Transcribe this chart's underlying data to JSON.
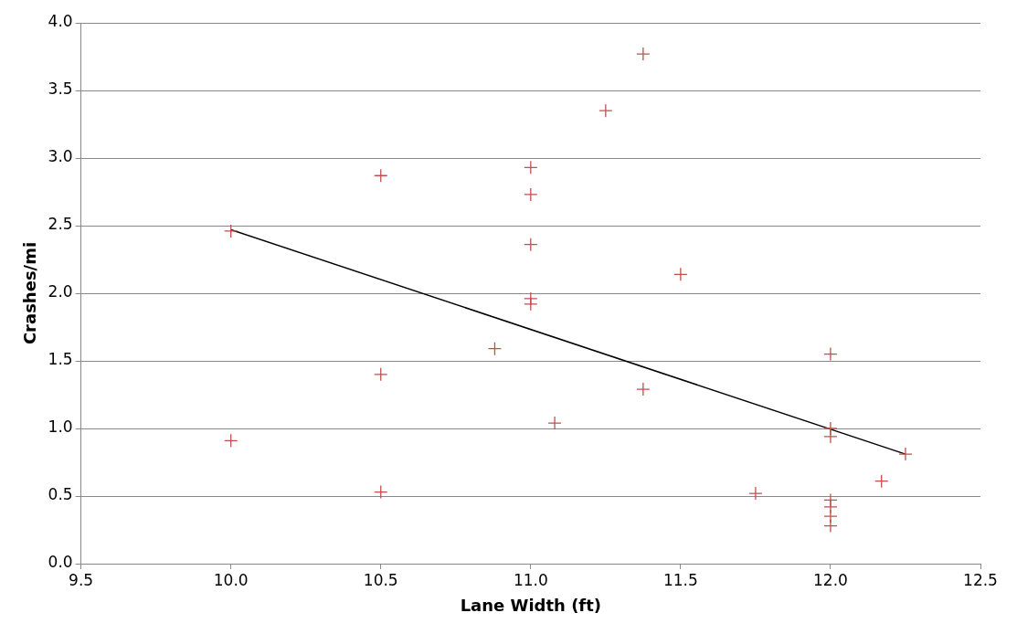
{
  "chart_data": {
    "type": "scatter",
    "xlabel": "Lane Width (ft)",
    "ylabel": "Crashes/mi",
    "xlim": [
      9.5,
      12.5
    ],
    "xticks": [
      {
        "value": 9.5,
        "label": "9.5"
      },
      {
        "value": 10,
        "label": "10.0"
      },
      {
        "value": 10.5,
        "label": "10.5"
      },
      {
        "value": 11,
        "label": "11.0"
      },
      {
        "value": 11.5,
        "label": "11.5"
      },
      {
        "value": 12,
        "label": "12.0"
      },
      {
        "value": 12.5,
        "label": "12.5"
      }
    ],
    "ylim": [
      0,
      4
    ],
    "yticks": [
      {
        "value": 0,
        "label": "0.0"
      },
      {
        "value": 0.5,
        "label": "0.5"
      },
      {
        "value": 1,
        "label": "1.0"
      },
      {
        "value": 1.5,
        "label": "1.5"
      },
      {
        "value": 2,
        "label": "2.0"
      },
      {
        "value": 2.5,
        "label": "2.5"
      },
      {
        "value": 3,
        "label": "3.0"
      },
      {
        "value": 3.5,
        "label": "3.5"
      },
      {
        "value": 4,
        "label": "4.0"
      }
    ],
    "grid": "y",
    "legend": false,
    "marker": "cross",
    "series": [
      {
        "color": "#c0504d",
        "x": [
          10,
          10,
          10.5,
          10.5,
          10.5,
          10.88,
          11,
          11,
          11,
          11,
          11,
          11.08,
          11.25,
          11.375,
          11.375,
          11.5,
          11.75,
          12,
          12,
          12,
          12,
          12,
          12,
          12,
          12.17,
          12.25
        ],
        "values": [
          2.46,
          0.91,
          2.87,
          1.4,
          0.53,
          1.59,
          2.93,
          2.73,
          2.36,
          1.96,
          1.92,
          1.04,
          3.35,
          3.77,
          1.29,
          2.14,
          0.52,
          1.55,
          1.0,
          0.94,
          0.47,
          0.42,
          0.35,
          0.28,
          0.61,
          0.81
        ]
      },
      {
        "type": "line",
        "color": "#000000",
        "marker": "none",
        "x": [
          10,
          12.25
        ],
        "values": [
          2.47,
          0.81
        ]
      }
    ]
  }
}
